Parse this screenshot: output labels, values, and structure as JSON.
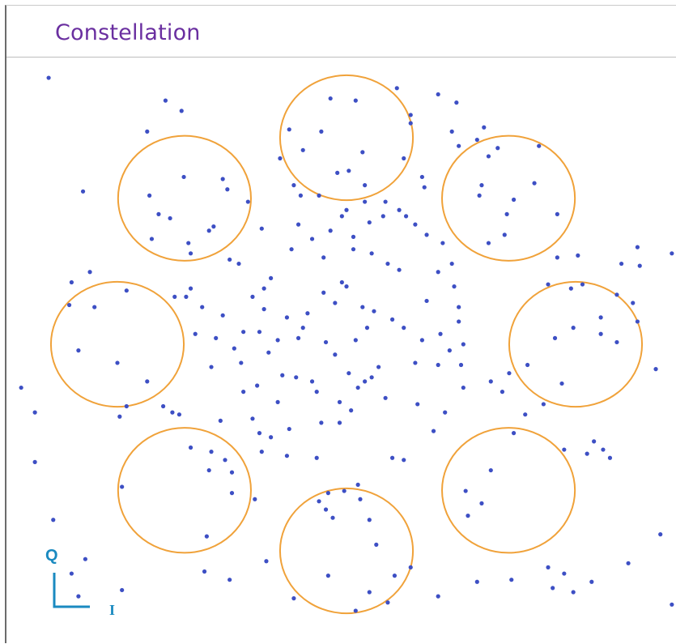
{
  "panel": {
    "title": "Constellation"
  },
  "colors": {
    "title": "#6a2fa0",
    "points": "#3d4fc4",
    "circles": "#f0a23a",
    "axis": "#1a8ac0"
  },
  "axes_indicator": {
    "q_label": "Q",
    "i_label": "I"
  },
  "chart_data": {
    "type": "scatter",
    "title": "Constellation",
    "xlabel": "I",
    "ylabel": "Q",
    "xlim": [
      -1.45,
      1.45
    ],
    "ylim": [
      -1.3,
      1.3
    ],
    "grid": false,
    "legend": "none",
    "reference_circles": {
      "radius": 0.29,
      "centers": [
        [
          0.0,
          1.0
        ],
        [
          0.707,
          0.707
        ],
        [
          1.0,
          0.0
        ],
        [
          0.707,
          -0.707
        ],
        [
          0.0,
          -1.0
        ],
        [
          -0.707,
          -0.707
        ],
        [
          -1.0,
          0.0
        ],
        [
          -0.707,
          0.707
        ]
      ]
    },
    "points": [
      [
        -1.3,
        1.29
      ],
      [
        -0.79,
        1.18
      ],
      [
        -0.72,
        1.13
      ],
      [
        -0.87,
        1.03
      ],
      [
        -1.15,
        0.74
      ],
      [
        -0.52,
        0.75
      ],
      [
        -0.85,
        0.51
      ],
      [
        -0.69,
        0.49
      ],
      [
        -1.12,
        0.35
      ],
      [
        -1.2,
        0.3
      ],
      [
        -0.96,
        0.26
      ],
      [
        -0.75,
        0.23
      ],
      [
        -1.21,
        0.19
      ],
      [
        -1.1,
        0.18
      ],
      [
        -0.7,
        0.23
      ],
      [
        -0.68,
        0.27
      ],
      [
        -0.51,
        0.41
      ],
      [
        -0.47,
        0.39
      ],
      [
        -0.63,
        0.18
      ],
      [
        -0.54,
        0.14
      ],
      [
        -0.41,
        0.23
      ],
      [
        -0.36,
        0.17
      ],
      [
        -0.45,
        0.06
      ],
      [
        -0.38,
        0.06
      ],
      [
        -1.17,
        -0.03
      ],
      [
        -1.0,
        -0.09
      ],
      [
        -0.66,
        0.05
      ],
      [
        -0.57,
        0.03
      ],
      [
        -0.49,
        -0.02
      ],
      [
        -0.34,
        -0.04
      ],
      [
        -0.3,
        0.02
      ],
      [
        -0.46,
        -0.09
      ],
      [
        -1.42,
        -0.21
      ],
      [
        -1.36,
        -0.33
      ],
      [
        -0.87,
        -0.18
      ],
      [
        -0.96,
        -0.3
      ],
      [
        -0.99,
        -0.35
      ],
      [
        -0.59,
        -0.11
      ],
      [
        -0.45,
        -0.23
      ],
      [
        -0.39,
        -0.2
      ],
      [
        -0.28,
        -0.15
      ],
      [
        -0.22,
        -0.16
      ],
      [
        -0.8,
        -0.3
      ],
      [
        -0.76,
        -0.33
      ],
      [
        -0.73,
        -0.34
      ],
      [
        -0.55,
        -0.37
      ],
      [
        -0.41,
        -0.36
      ],
      [
        -0.38,
        -0.43
      ],
      [
        -1.36,
        -0.57
      ],
      [
        -0.68,
        -0.5
      ],
      [
        -0.59,
        -0.52
      ],
      [
        -0.53,
        -0.56
      ],
      [
        -0.33,
        -0.45
      ],
      [
        -0.25,
        -0.41
      ],
      [
        -0.11,
        -0.38
      ],
      [
        -0.6,
        -0.61
      ],
      [
        -0.5,
        -0.62
      ],
      [
        -0.37,
        -0.52
      ],
      [
        -0.26,
        -0.54
      ],
      [
        -0.13,
        -0.55
      ],
      [
        -0.98,
        -0.69
      ],
      [
        -0.5,
        -0.72
      ],
      [
        -0.4,
        -0.75
      ],
      [
        -1.28,
        -0.85
      ],
      [
        -1.14,
        -1.04
      ],
      [
        -0.61,
        -0.93
      ],
      [
        -0.51,
        -1.14
      ],
      [
        -0.35,
        -1.05
      ],
      [
        -1.2,
        -1.11
      ],
      [
        -1.17,
        -1.22
      ],
      [
        -0.62,
        -1.1
      ],
      [
        -0.12,
        -0.76
      ],
      [
        -0.09,
        -0.8
      ],
      [
        -0.08,
        -0.72
      ],
      [
        -0.01,
        -0.71
      ],
      [
        0.05,
        -0.68
      ],
      [
        0.06,
        -0.75
      ],
      [
        -0.06,
        -0.84
      ],
      [
        -0.98,
        -1.19
      ],
      [
        -0.23,
        -1.23
      ],
      [
        -0.08,
        -1.12
      ],
      [
        0.1,
        -0.85
      ],
      [
        0.13,
        -0.97
      ],
      [
        0.21,
        -1.12
      ],
      [
        0.18,
        -1.25
      ],
      [
        0.1,
        -1.2
      ],
      [
        0.28,
        -1.08
      ],
      [
        0.4,
        -1.22
      ],
      [
        0.04,
        -1.29
      ],
      [
        0.2,
        -0.55
      ],
      [
        0.25,
        -0.56
      ],
      [
        0.53,
        -0.83
      ],
      [
        0.59,
        -0.77
      ],
      [
        0.63,
        -0.61
      ],
      [
        0.52,
        -0.71
      ],
      [
        0.72,
        -1.14
      ],
      [
        0.57,
        -1.15
      ],
      [
        0.88,
        -1.08
      ],
      [
        0.9,
        -1.18
      ],
      [
        0.95,
        -1.11
      ],
      [
        0.99,
        -1.2
      ],
      [
        1.07,
        -1.15
      ],
      [
        1.23,
        -1.06
      ],
      [
        1.42,
        -1.26
      ],
      [
        0.78,
        -0.34
      ],
      [
        0.86,
        -0.29
      ],
      [
        0.73,
        -0.43
      ],
      [
        0.95,
        -0.51
      ],
      [
        1.05,
        -0.53
      ],
      [
        1.08,
        -0.47
      ],
      [
        1.15,
        -0.55
      ],
      [
        1.12,
        -0.51
      ],
      [
        1.35,
        -0.12
      ],
      [
        1.48,
        -0.41
      ],
      [
        0.63,
        -0.18
      ],
      [
        0.71,
        -0.14
      ],
      [
        0.68,
        -0.23
      ],
      [
        0.79,
        -0.1
      ],
      [
        0.94,
        -0.19
      ],
      [
        0.91,
        0.03
      ],
      [
        0.99,
        0.08
      ],
      [
        1.11,
        0.13
      ],
      [
        1.11,
        0.05
      ],
      [
        1.27,
        0.11
      ],
      [
        1.01,
        0.43
      ],
      [
        1.03,
        0.29
      ],
      [
        0.98,
        0.27
      ],
      [
        0.88,
        0.29
      ],
      [
        0.69,
        0.53
      ],
      [
        0.62,
        0.49
      ],
      [
        0.7,
        0.63
      ],
      [
        0.92,
        0.42
      ],
      [
        1.2,
        0.39
      ],
      [
        1.27,
        0.47
      ],
      [
        1.42,
        0.44
      ],
      [
        1.28,
        0.38
      ],
      [
        1.25,
        0.2
      ],
      [
        1.18,
        0.24
      ],
      [
        1.18,
        0.01
      ],
      [
        0.66,
        0.95
      ],
      [
        0.84,
        0.96
      ],
      [
        0.62,
        0.91
      ],
      [
        0.82,
        0.78
      ],
      [
        0.73,
        0.7
      ],
      [
        0.92,
        0.63
      ],
      [
        0.6,
        1.05
      ],
      [
        0.57,
        0.99
      ],
      [
        0.49,
        0.96
      ],
      [
        0.46,
        1.03
      ],
      [
        0.59,
        0.77
      ],
      [
        0.58,
        0.72
      ],
      [
        0.33,
        0.81
      ],
      [
        0.34,
        0.76
      ],
      [
        0.4,
        1.21
      ],
      [
        0.48,
        1.17
      ],
      [
        0.07,
        0.93
      ],
      [
        0.22,
        1.24
      ],
      [
        0.28,
        1.11
      ],
      [
        0.28,
        1.07
      ],
      [
        0.25,
        0.9
      ],
      [
        0.01,
        0.84
      ],
      [
        0.08,
        0.77
      ],
      [
        0.17,
        0.69
      ],
      [
        0.23,
        0.65
      ],
      [
        0.26,
        0.62
      ],
      [
        0.3,
        0.58
      ],
      [
        0.35,
        0.53
      ],
      [
        0.42,
        0.49
      ],
      [
        0.46,
        0.39
      ],
      [
        0.4,
        0.35
      ],
      [
        0.18,
        0.39
      ],
      [
        0.23,
        0.36
      ],
      [
        0.35,
        0.21
      ],
      [
        0.47,
        0.28
      ],
      [
        0.49,
        0.18
      ],
      [
        0.49,
        0.11
      ],
      [
        0.41,
        0.05
      ],
      [
        0.2,
        0.12
      ],
      [
        0.25,
        0.08
      ],
      [
        0.33,
        0.02
      ],
      [
        0.45,
        -0.03
      ],
      [
        0.51,
        0.0
      ],
      [
        0.3,
        -0.09
      ],
      [
        0.4,
        -0.1
      ],
      [
        0.5,
        -0.1
      ],
      [
        0.51,
        -0.21
      ],
      [
        0.38,
        -0.42
      ],
      [
        0.43,
        -0.33
      ],
      [
        0.31,
        -0.29
      ],
      [
        0.17,
        -0.26
      ],
      [
        0.02,
        -0.32
      ],
      [
        0.04,
        0.02
      ],
      [
        -0.09,
        0.01
      ],
      [
        -0.05,
        -0.05
      ],
      [
        0.01,
        -0.14
      ],
      [
        0.08,
        -0.18
      ],
      [
        0.11,
        -0.16
      ],
      [
        0.14,
        -0.11
      ],
      [
        -0.15,
        -0.18
      ],
      [
        -0.03,
        -0.28
      ],
      [
        0.05,
        -0.21
      ],
      [
        -0.19,
        0.08
      ],
      [
        -0.21,
        0.03
      ],
      [
        -0.26,
        0.13
      ],
      [
        -0.17,
        0.15
      ],
      [
        -0.1,
        0.25
      ],
      [
        -0.05,
        0.2
      ],
      [
        0.0,
        0.28
      ],
      [
        -0.02,
        0.3
      ],
      [
        0.07,
        0.18
      ],
      [
        0.09,
        0.08
      ],
      [
        0.12,
        0.16
      ],
      [
        -0.33,
        0.32
      ],
      [
        -0.36,
        0.27
      ],
      [
        -0.1,
        0.42
      ],
      [
        -0.24,
        0.46
      ],
      [
        -0.15,
        0.51
      ],
      [
        -0.07,
        0.55
      ],
      [
        0.03,
        0.46
      ],
      [
        0.03,
        0.52
      ],
      [
        0.1,
        0.59
      ],
      [
        -0.21,
        0.58
      ],
      [
        -0.37,
        0.56
      ],
      [
        -0.2,
        0.72
      ],
      [
        -0.23,
        0.77
      ],
      [
        -0.02,
        0.62
      ],
      [
        0.08,
        0.69
      ],
      [
        0.0,
        0.65
      ],
      [
        -0.12,
        0.72
      ],
      [
        -0.43,
        0.69
      ],
      [
        -0.25,
        1.04
      ],
      [
        -0.29,
        0.9
      ],
      [
        -0.19,
        0.94
      ],
      [
        0.16,
        0.62
      ],
      [
        0.04,
        1.18
      ],
      [
        -0.07,
        1.19
      ],
      [
        -0.04,
        0.83
      ],
      [
        -0.11,
        1.03
      ],
      [
        -0.54,
        0.8
      ],
      [
        -0.58,
        0.57
      ],
      [
        -0.6,
        0.55
      ],
      [
        -0.77,
        0.61
      ],
      [
        -0.82,
        0.63
      ],
      [
        -0.68,
        0.44
      ],
      [
        -0.86,
        0.72
      ],
      [
        1.37,
        -0.92
      ],
      [
        -0.13,
        -0.23
      ],
      [
        0.11,
        0.44
      ],
      [
        -0.03,
        -0.38
      ],
      [
        -0.3,
        -0.28
      ],
      [
        -0.71,
        0.81
      ]
    ]
  }
}
